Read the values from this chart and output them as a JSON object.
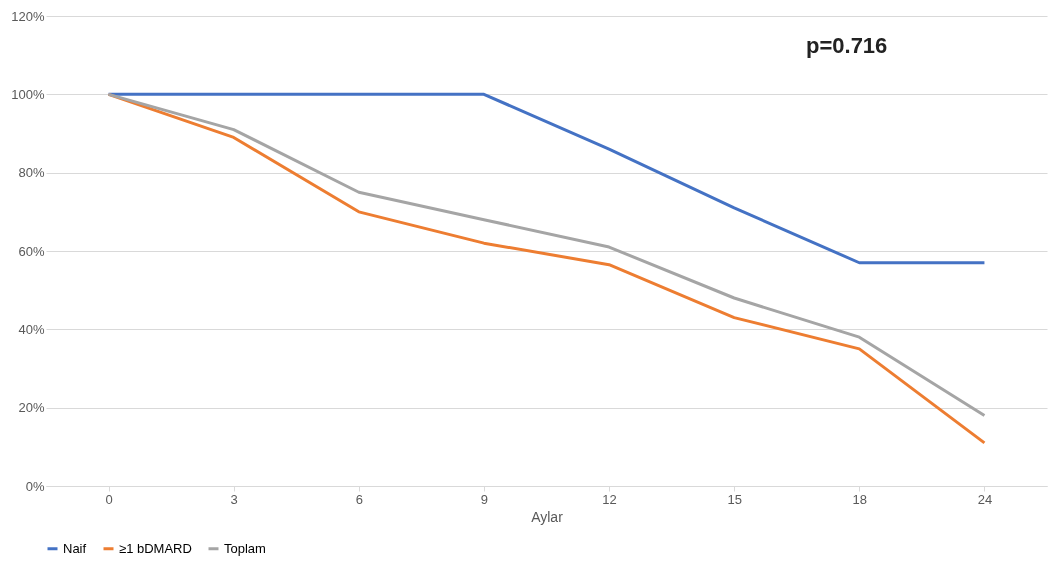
{
  "chart_data": {
    "type": "line",
    "xlabel": "Aylar",
    "categories": [
      "0",
      "3",
      "6",
      "9",
      "12",
      "15",
      "18",
      "24"
    ],
    "series": [
      {
        "name": "Naif",
        "color": "#4472c4",
        "values": [
          100,
          100,
          100,
          100,
          86,
          71,
          57,
          57
        ]
      },
      {
        "name": "≥1 bDMARD",
        "color": "#ed7d31",
        "values": [
          100,
          89,
          70,
          62,
          56.5,
          43,
          35,
          11
        ]
      },
      {
        "name": "Toplam",
        "color": "#a5a5a5",
        "values": [
          100,
          91,
          75,
          68,
          61,
          48,
          38,
          18
        ]
      }
    ],
    "ylim": [
      0,
      120
    ],
    "yticks": [
      {
        "value": 0,
        "label": "0%"
      },
      {
        "value": 20,
        "label": "20%"
      },
      {
        "value": 40,
        "label": "40%"
      },
      {
        "value": 60,
        "label": "60%"
      },
      {
        "value": 80,
        "label": "80%"
      },
      {
        "value": 100,
        "label": "100%"
      },
      {
        "value": 120,
        "label": "120%"
      }
    ],
    "grid": "y",
    "legend": "bottom",
    "marker": "none",
    "line_style": "solid",
    "annotations": [
      "p=0.716"
    ]
  }
}
